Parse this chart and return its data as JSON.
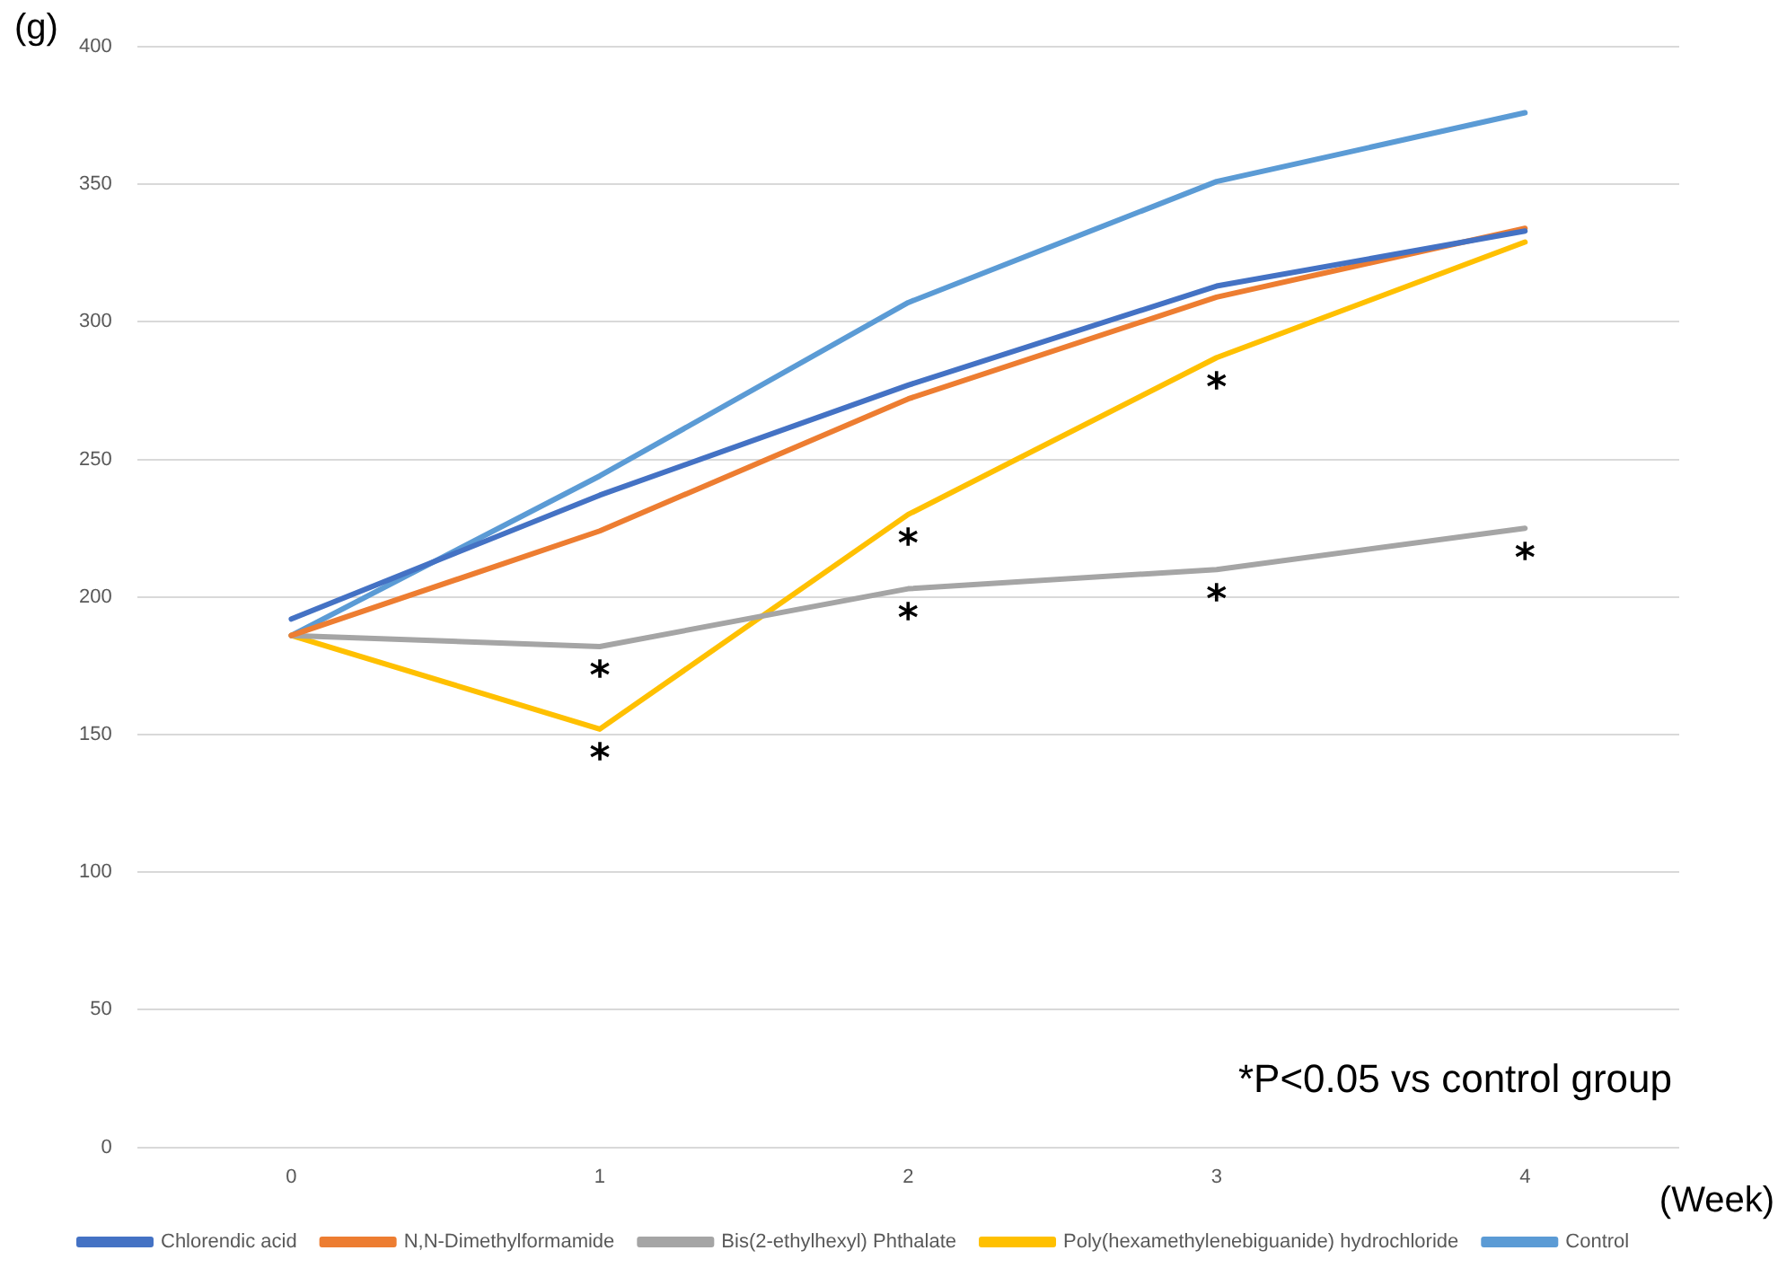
{
  "chart_data": {
    "type": "line",
    "ylabel": "(g)",
    "xlabel": "(Week)",
    "categories": [
      "0",
      "1",
      "2",
      "3",
      "4"
    ],
    "ylim": [
      0,
      400
    ],
    "yticks": [
      0,
      50,
      100,
      150,
      200,
      250,
      300,
      350,
      400
    ],
    "grid": "y",
    "legend": "bottom",
    "marker": "none",
    "line_style": "solid",
    "series": [
      {
        "name": "Chlorendic acid",
        "color": "#4472c4",
        "values": [
          192,
          237,
          277,
          313,
          333
        ]
      },
      {
        "name": "N,N-Dimethylformamide",
        "color": "#ed7d31",
        "values": [
          186,
          224,
          272,
          309,
          334
        ]
      },
      {
        "name": "Bis(2-ethylhexyl) Phthalate",
        "color": "#a5a5a5",
        "values": [
          186,
          182,
          203,
          210,
          225
        ]
      },
      {
        "name": "Poly(hexamethylenebiguanide) hydrochloride",
        "color": "#ffc000",
        "values": [
          186,
          152,
          230,
          287,
          329
        ]
      },
      {
        "name": "Control",
        "color": "#5b9bd5",
        "values": [
          186,
          244,
          307,
          351,
          376
        ]
      }
    ],
    "annotations": [
      {
        "text": "*",
        "x": "1",
        "y": 182
      },
      {
        "text": "*",
        "x": "1",
        "y": 152
      },
      {
        "text": "*",
        "x": "2",
        "y": 230
      },
      {
        "text": "*",
        "x": "2",
        "y": 203
      },
      {
        "text": "*",
        "x": "3",
        "y": 287
      },
      {
        "text": "*",
        "x": "3",
        "y": 210
      },
      {
        "text": "*",
        "x": "4",
        "y": 225
      },
      "*P<0.05 vs control group"
    ]
  }
}
